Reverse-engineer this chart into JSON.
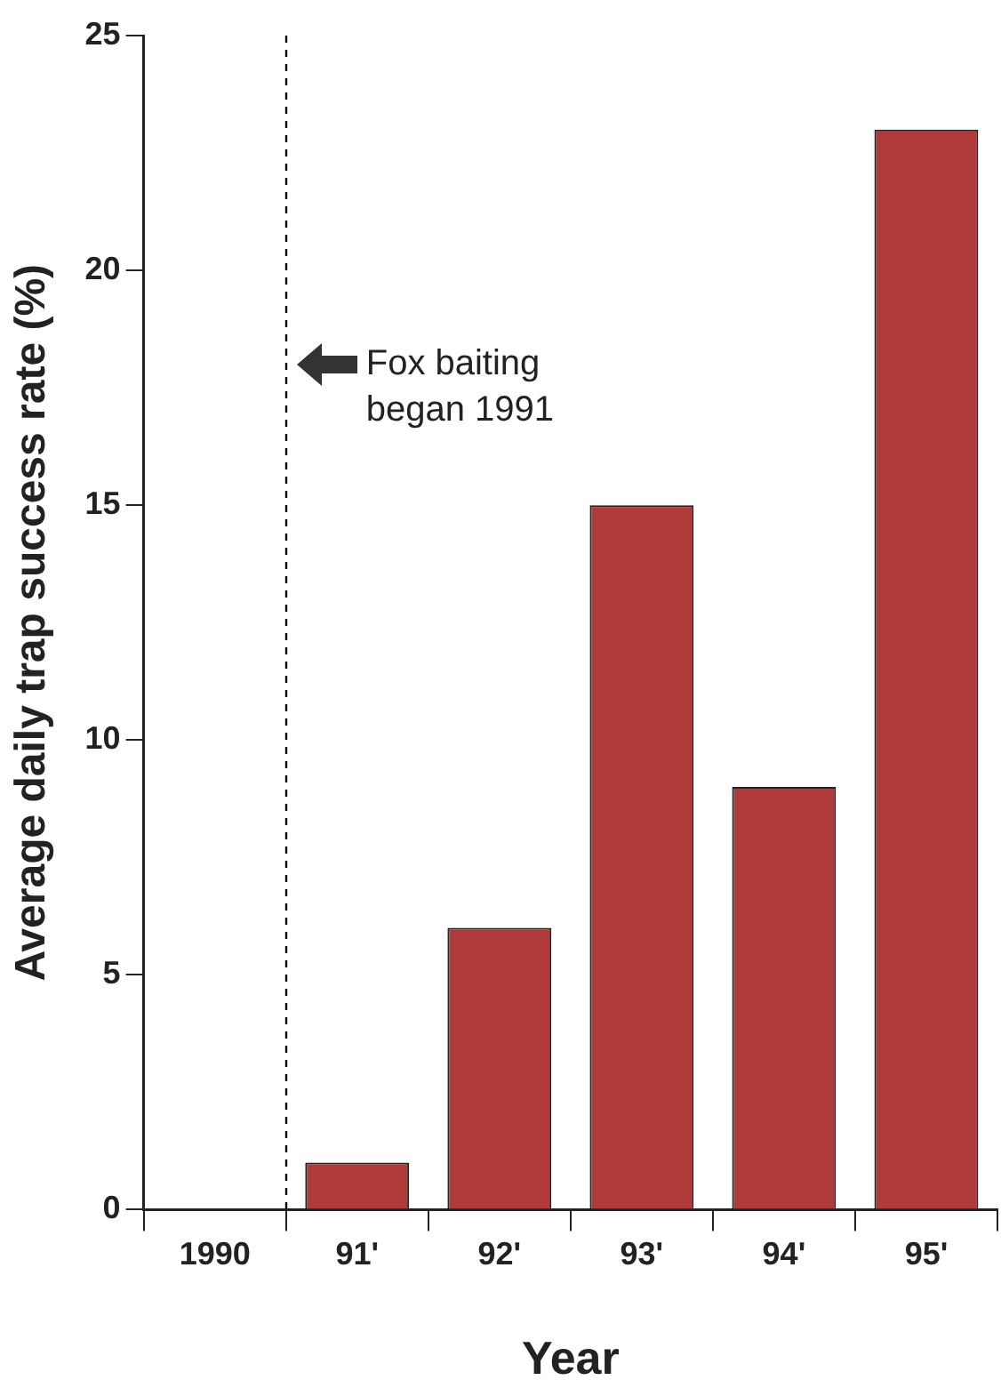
{
  "chart_data": {
    "type": "bar",
    "xlabel": "Year",
    "ylabel": "Average daily trap success rate (%)",
    "categories": [
      "1990",
      "91'",
      "92'",
      "93'",
      "94'",
      "95'"
    ],
    "values": [
      0,
      1,
      6,
      15,
      9,
      23
    ],
    "color": "#b03a3a",
    "ylim": [
      0,
      25
    ],
    "yticks": [
      0,
      5,
      10,
      15,
      20,
      25
    ],
    "grid": false,
    "legend": false,
    "annotations": [
      "Fox baiting began 1991"
    ]
  }
}
